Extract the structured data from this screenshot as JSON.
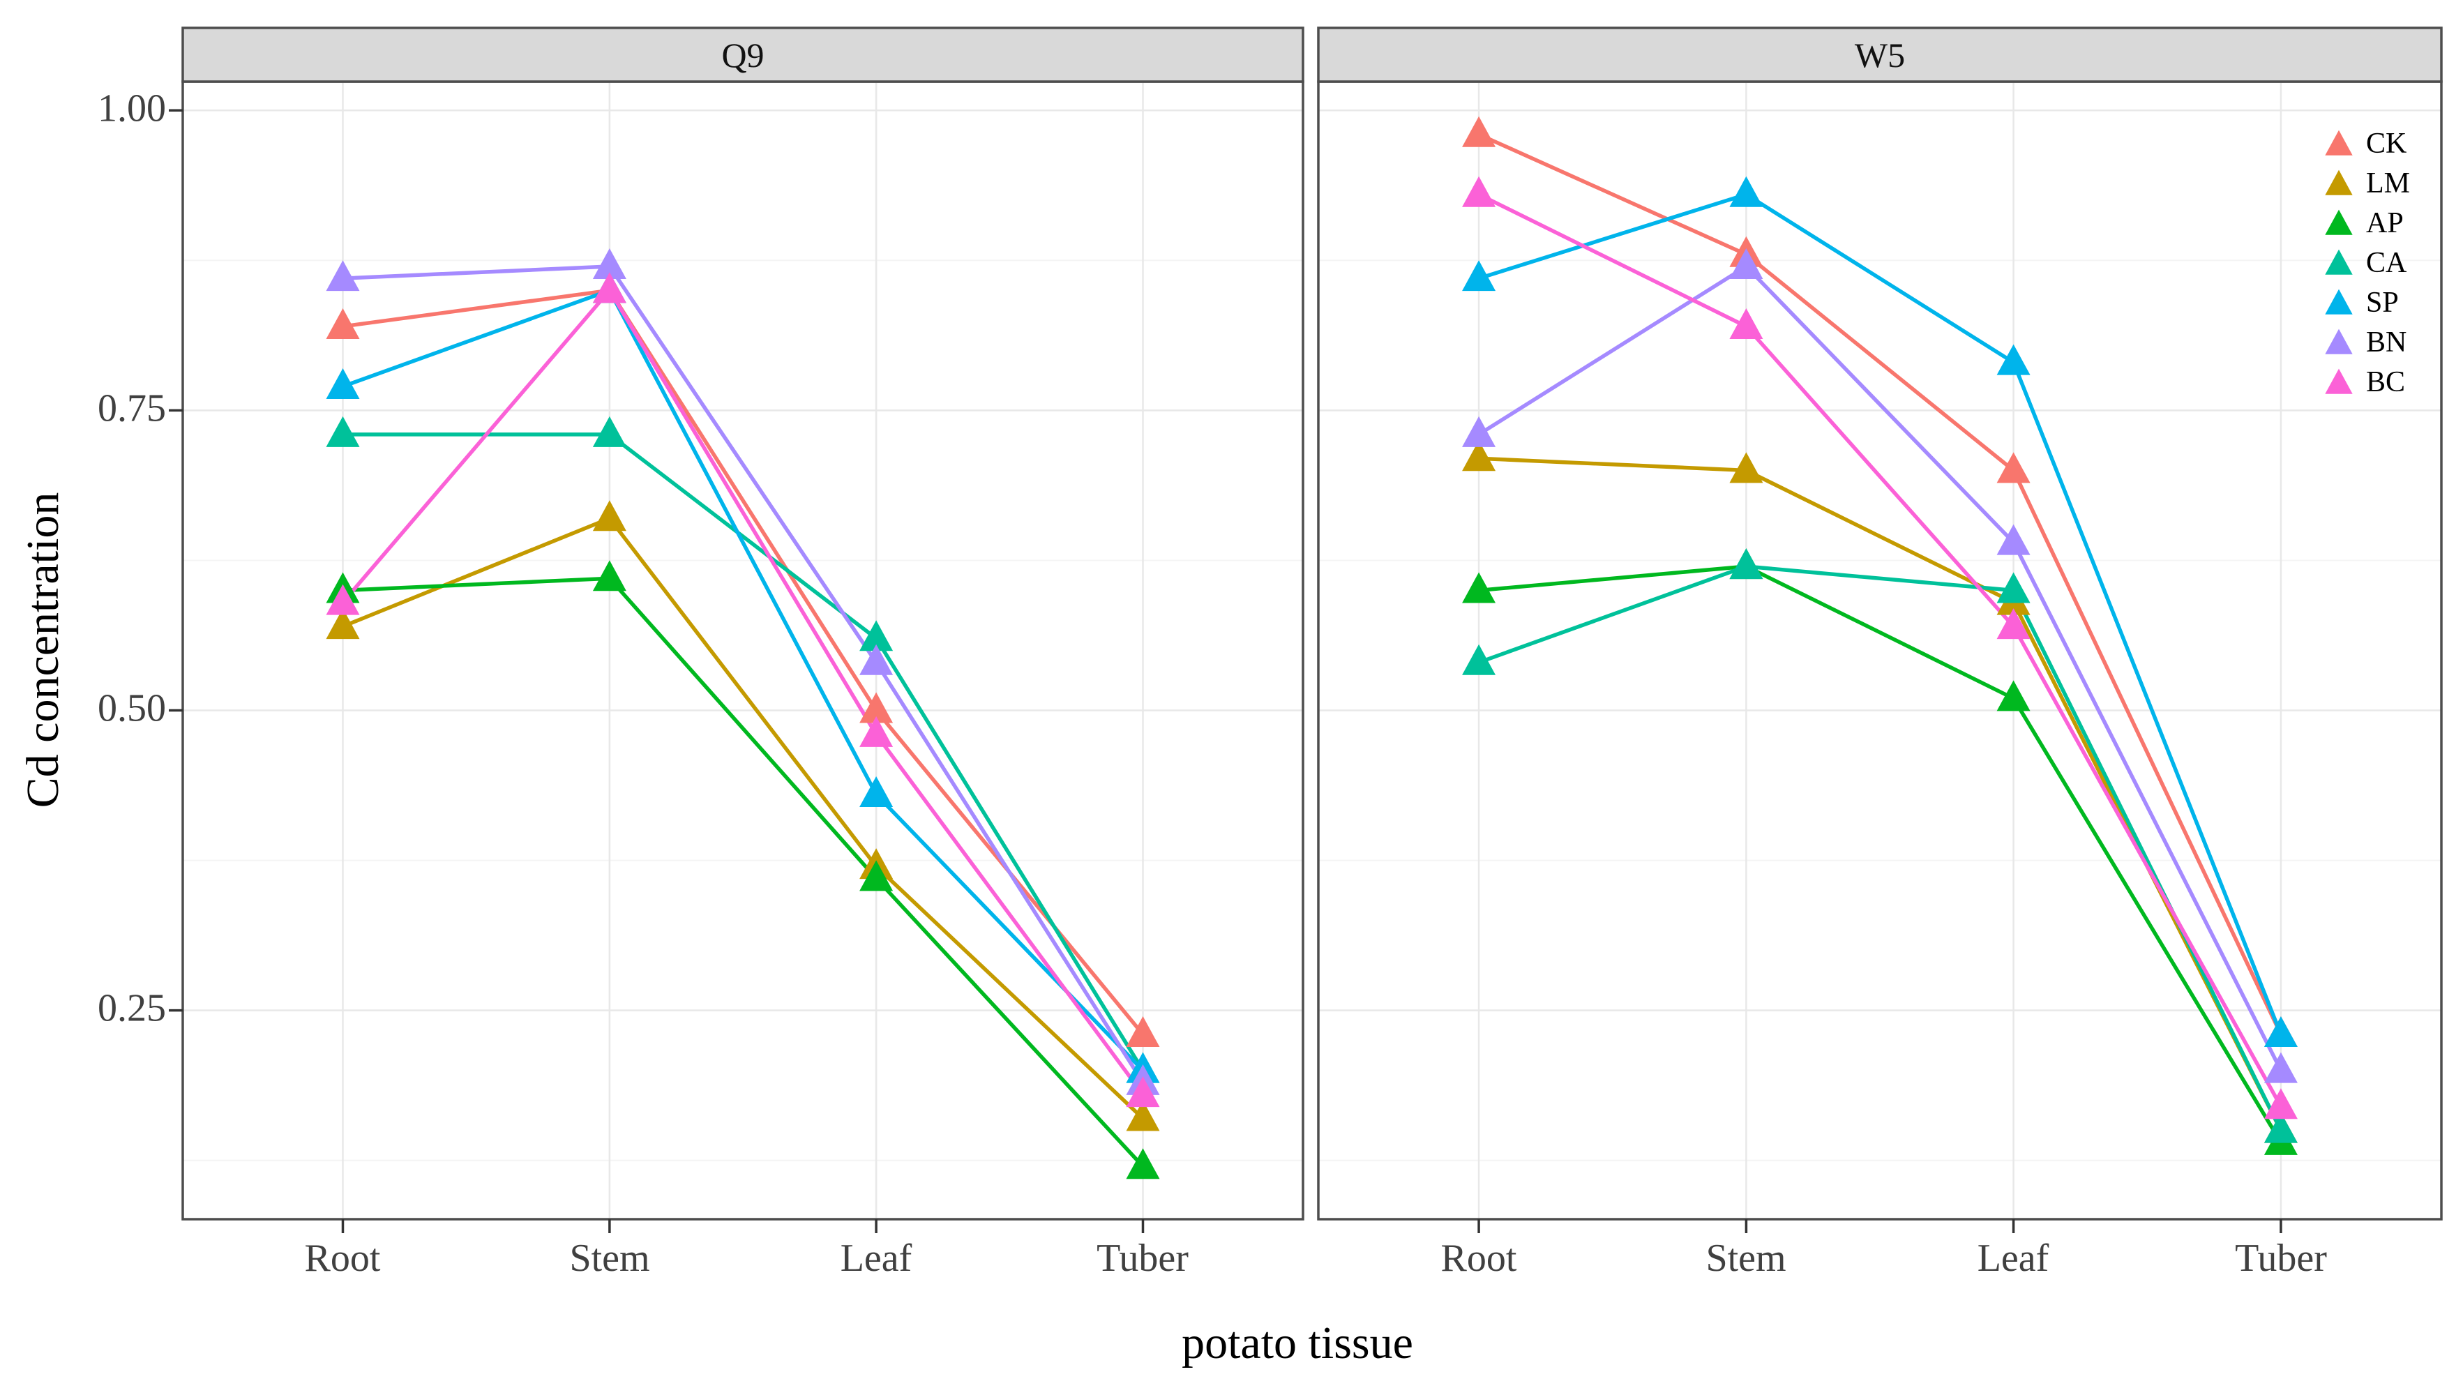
{
  "chart_data": {
    "type": "line",
    "title": "",
    "xlabel": "potato tissue",
    "ylabel": "Cd concentration",
    "facets": [
      "Q9",
      "W5"
    ],
    "categories": [
      "Root",
      "Stem",
      "Leaf",
      "Tuber"
    ],
    "y_ticks": [
      0.25,
      0.5,
      0.75,
      1.0
    ],
    "y_tick_labels": [
      "0.25",
      "0.50",
      "0.75",
      "1.00"
    ],
    "ylim": [
      0.076,
      1.024
    ],
    "grid": "major-and-minor-horizontal, major-vertical-at-categories",
    "legend_position": "inside-top-right-of-W5-panel",
    "marker": "filled-triangle",
    "series": [
      {
        "name": "CK",
        "color": "#F8766D",
        "values": {
          "Q9": [
            0.82,
            0.85,
            0.5,
            0.23
          ],
          "W5": [
            0.98,
            0.88,
            0.7,
            0.23
          ]
        }
      },
      {
        "name": "LM",
        "color": "#C49A00",
        "values": {
          "Q9": [
            0.57,
            0.66,
            0.37,
            0.16
          ],
          "W5": [
            0.71,
            0.7,
            0.59,
            0.15
          ]
        }
      },
      {
        "name": "AP",
        "color": "#00B81F",
        "values": {
          "Q9": [
            0.6,
            0.61,
            0.36,
            0.12
          ],
          "W5": [
            0.6,
            0.62,
            0.51,
            0.14
          ]
        }
      },
      {
        "name": "CA",
        "color": "#00C19A",
        "values": {
          "Q9": [
            0.73,
            0.73,
            0.56,
            0.2
          ],
          "W5": [
            0.54,
            0.62,
            0.6,
            0.15
          ]
        }
      },
      {
        "name": "SP",
        "color": "#00B4EB",
        "values": {
          "Q9": [
            0.77,
            0.85,
            0.43,
            0.2
          ],
          "W5": [
            0.86,
            0.93,
            0.79,
            0.23
          ]
        }
      },
      {
        "name": "BN",
        "color": "#A58AFF",
        "values": {
          "Q9": [
            0.86,
            0.87,
            0.54,
            0.19
          ],
          "W5": [
            0.73,
            0.87,
            0.64,
            0.2
          ]
        }
      },
      {
        "name": "BC",
        "color": "#FB61D7",
        "values": {
          "Q9": [
            0.59,
            0.85,
            0.48,
            0.18
          ],
          "W5": [
            0.93,
            0.82,
            0.57,
            0.17
          ]
        }
      }
    ],
    "styles": {
      "background": "#FFFFFF",
      "strip_fill": "#D9D9D9",
      "panel_border": "#4D4D4D",
      "grid_major": "#E8E8E8",
      "grid_minor": "#F4F4F4",
      "tick_color": "#333333"
    }
  }
}
